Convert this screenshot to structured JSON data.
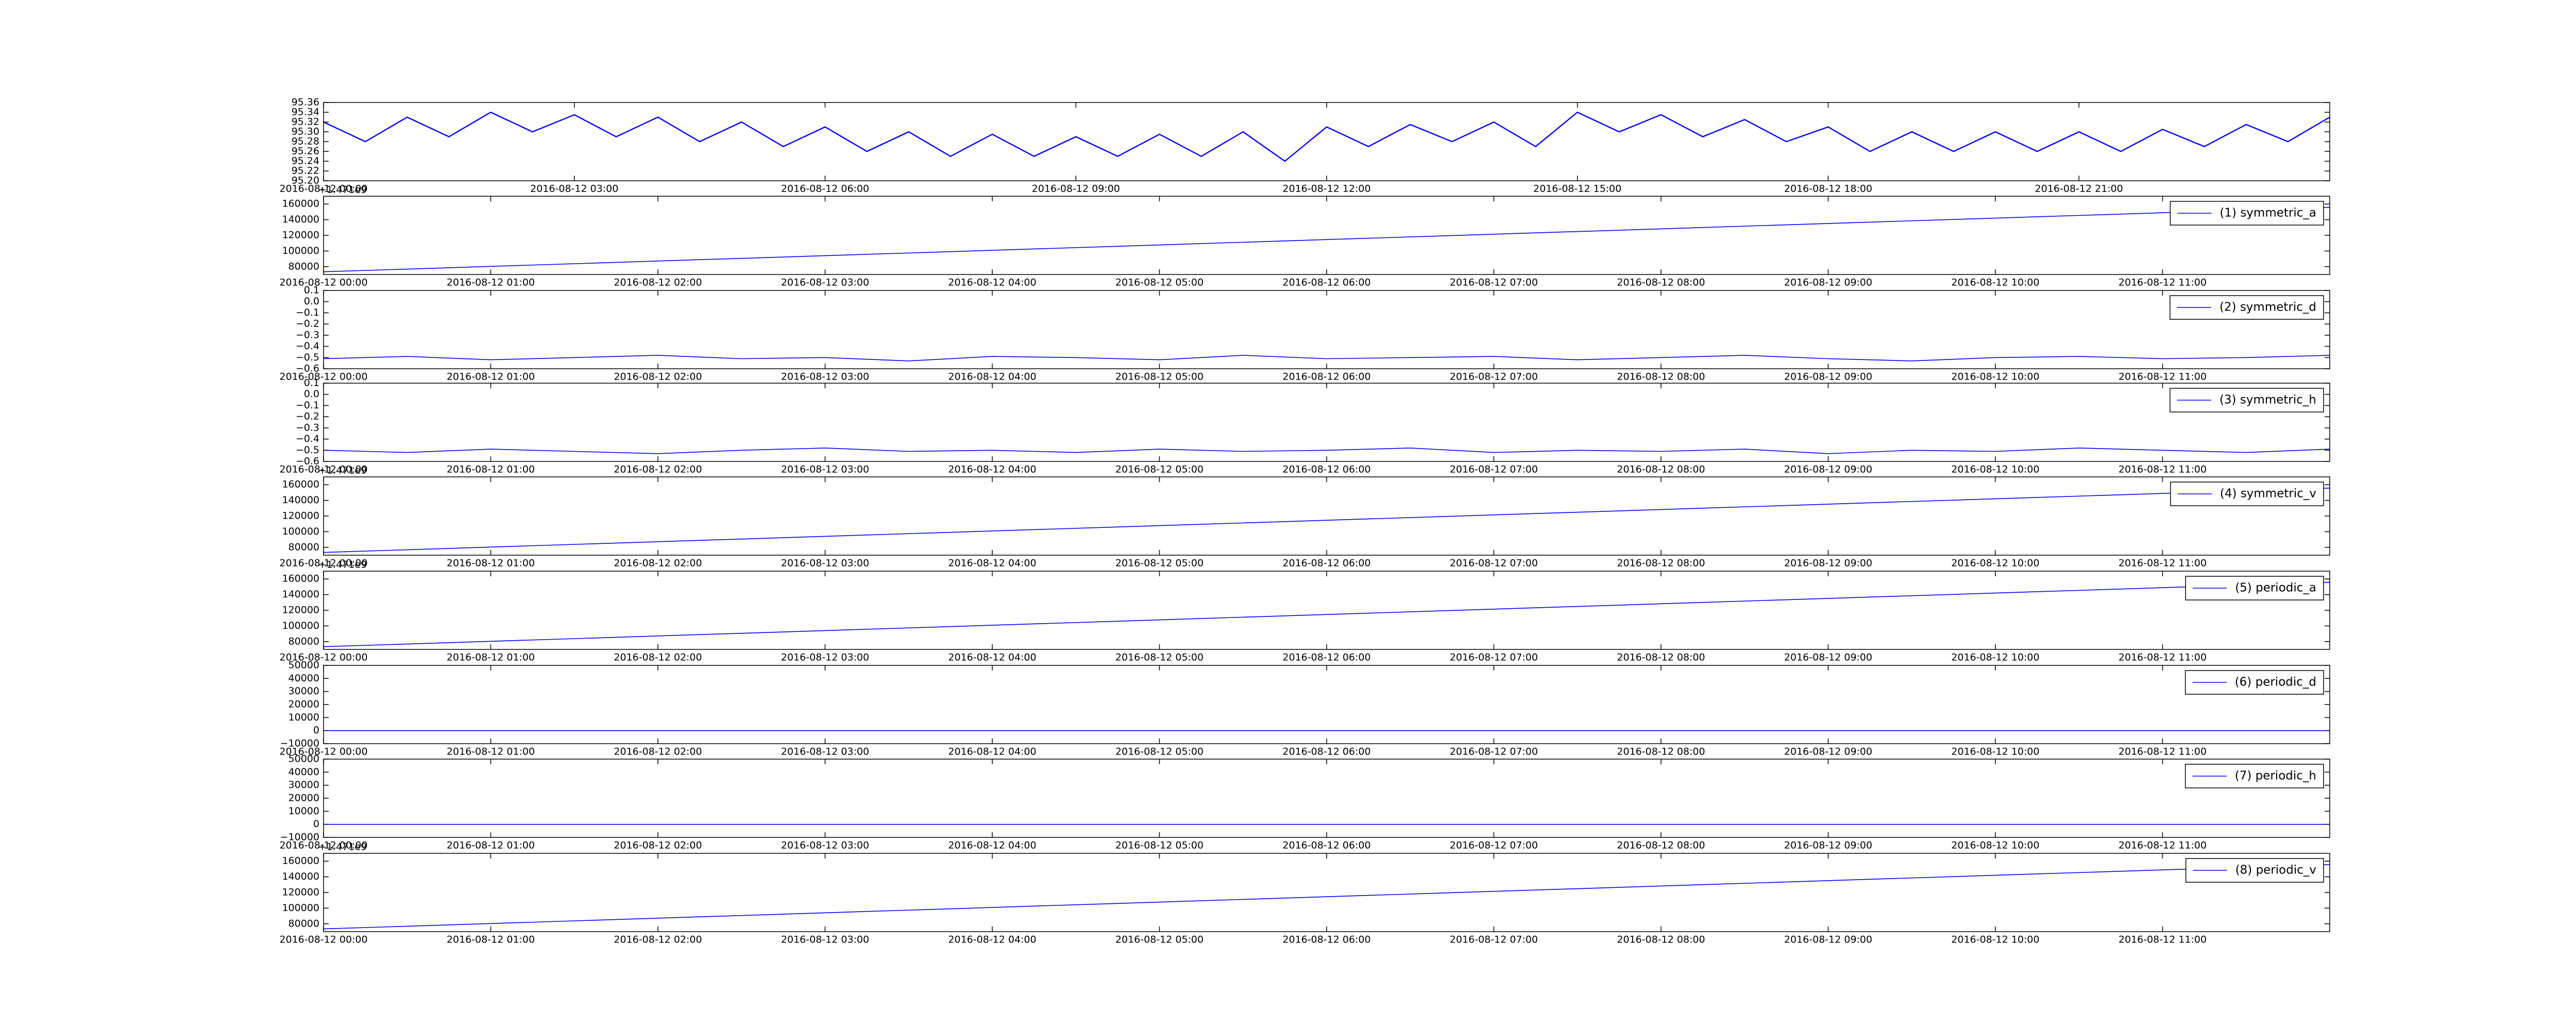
{
  "chart_data": [
    {
      "type": "line",
      "color": "#0000ff",
      "x": [
        "2016-08-12 00:00",
        "2016-08-12 00:30",
        "2016-08-12 01:00",
        "2016-08-12 01:30",
        "2016-08-12 02:00",
        "2016-08-12 02:30",
        "2016-08-12 03:00",
        "2016-08-12 03:30",
        "2016-08-12 04:00",
        "2016-08-12 04:30",
        "2016-08-12 05:00",
        "2016-08-12 05:30",
        "2016-08-12 06:00",
        "2016-08-12 06:30",
        "2016-08-12 07:00",
        "2016-08-12 07:30",
        "2016-08-12 08:00",
        "2016-08-12 08:30",
        "2016-08-12 09:00",
        "2016-08-12 09:30",
        "2016-08-12 10:00",
        "2016-08-12 10:30",
        "2016-08-12 11:00",
        "2016-08-12 11:30",
        "2016-08-12 12:00",
        "2016-08-12 12:30",
        "2016-08-12 13:00",
        "2016-08-12 13:30",
        "2016-08-12 14:00",
        "2016-08-12 14:30",
        "2016-08-12 15:00",
        "2016-08-12 15:30",
        "2016-08-12 16:00",
        "2016-08-12 16:30",
        "2016-08-12 17:00",
        "2016-08-12 17:30",
        "2016-08-12 18:00",
        "2016-08-12 18:30",
        "2016-08-12 19:00",
        "2016-08-12 19:30",
        "2016-08-12 20:00",
        "2016-08-12 20:30",
        "2016-08-12 21:00",
        "2016-08-12 21:30",
        "2016-08-12 22:00",
        "2016-08-12 22:30",
        "2016-08-12 23:00",
        "2016-08-12 23:30",
        "2016-08-13 00:00"
      ],
      "values": [
        95.32,
        95.28,
        95.33,
        95.29,
        95.34,
        95.3,
        95.335,
        95.29,
        95.33,
        95.28,
        95.32,
        95.27,
        95.31,
        95.26,
        95.3,
        95.25,
        95.295,
        95.25,
        95.29,
        95.25,
        95.295,
        95.25,
        95.3,
        95.24,
        95.31,
        95.27,
        95.315,
        95.28,
        95.32,
        95.27,
        95.34,
        95.3,
        95.335,
        95.29,
        95.325,
        95.28,
        95.31,
        95.26,
        95.3,
        95.26,
        95.3,
        95.26,
        95.3,
        95.26,
        95.305,
        95.27,
        95.315,
        95.28,
        95.33
      ],
      "xlim": [
        "2016-08-12 00:00",
        "2016-08-13 00:00"
      ],
      "xticks": [
        "2016-08-12 00:00",
        "2016-08-12 03:00",
        "2016-08-12 06:00",
        "2016-08-12 09:00",
        "2016-08-12 12:00",
        "2016-08-12 15:00",
        "2016-08-12 18:00",
        "2016-08-12 21:00"
      ],
      "ylim": [
        95.2,
        95.36
      ],
      "yticks": [
        {
          "value": 95.2,
          "label": "95.20"
        },
        95.22,
        95.24,
        95.26,
        95.28,
        {
          "value": 95.3,
          "label": "95.30"
        },
        95.32,
        95.34,
        95.36
      ]
    },
    {
      "type": "line",
      "legend": "upper right",
      "offset_text": "+1.471e9",
      "series": [
        {
          "name": "(1) symmetric_a",
          "color": "#0000ff",
          "values": [
            73500,
            155700
          ]
        }
      ],
      "x": [
        "2016-08-12 00:00",
        "2016-08-12 12:00"
      ],
      "xlim": [
        "2016-08-12 00:00",
        "2016-08-12 12:00"
      ],
      "xticks": [
        "2016-08-12 00:00",
        "2016-08-12 01:00",
        "2016-08-12 02:00",
        "2016-08-12 03:00",
        "2016-08-12 04:00",
        "2016-08-12 05:00",
        "2016-08-12 06:00",
        "2016-08-12 07:00",
        "2016-08-12 08:00",
        "2016-08-12 09:00",
        "2016-08-12 10:00",
        "2016-08-12 11:00"
      ],
      "ylim": [
        70000,
        170000
      ],
      "yticks": [
        80000,
        100000,
        120000,
        140000,
        160000
      ]
    },
    {
      "type": "line",
      "legend": "upper right",
      "series": [
        {
          "name": "(2) symmetric_d",
          "color": "#0000ff",
          "values": [
            -0.51,
            -0.49,
            -0.52,
            -0.5,
            -0.48,
            -0.51,
            -0.5,
            -0.53,
            -0.49,
            -0.5,
            -0.52,
            -0.48,
            -0.51,
            -0.5,
            -0.49,
            -0.52,
            -0.5,
            -0.48,
            -0.51,
            -0.53,
            -0.5,
            -0.49,
            -0.51,
            -0.5,
            -0.48
          ]
        }
      ],
      "x": [
        "2016-08-12 00:00",
        "2016-08-12 00:30",
        "2016-08-12 01:00",
        "2016-08-12 01:30",
        "2016-08-12 02:00",
        "2016-08-12 02:30",
        "2016-08-12 03:00",
        "2016-08-12 03:30",
        "2016-08-12 04:00",
        "2016-08-12 04:30",
        "2016-08-12 05:00",
        "2016-08-12 05:30",
        "2016-08-12 06:00",
        "2016-08-12 06:30",
        "2016-08-12 07:00",
        "2016-08-12 07:30",
        "2016-08-12 08:00",
        "2016-08-12 08:30",
        "2016-08-12 09:00",
        "2016-08-12 09:30",
        "2016-08-12 10:00",
        "2016-08-12 10:30",
        "2016-08-12 11:00",
        "2016-08-12 11:30",
        "2016-08-12 12:00"
      ],
      "xlim": [
        "2016-08-12 00:00",
        "2016-08-12 12:00"
      ],
      "xticks": [
        "2016-08-12 00:00",
        "2016-08-12 01:00",
        "2016-08-12 02:00",
        "2016-08-12 03:00",
        "2016-08-12 04:00",
        "2016-08-12 05:00",
        "2016-08-12 06:00",
        "2016-08-12 07:00",
        "2016-08-12 08:00",
        "2016-08-12 09:00",
        "2016-08-12 10:00",
        "2016-08-12 11:00"
      ],
      "ylim": [
        -0.6,
        0.1
      ],
      "yticks": [
        {
          "value": -0.6,
          "label": "−0.6"
        },
        {
          "value": -0.5,
          "label": "−0.5"
        },
        {
          "value": -0.4,
          "label": "−0.4"
        },
        {
          "value": -0.3,
          "label": "−0.3"
        },
        {
          "value": -0.2,
          "label": "−0.2"
        },
        {
          "value": -0.1,
          "label": "−0.1"
        },
        {
          "value": 0,
          "label": "0.0"
        },
        0.1
      ]
    },
    {
      "type": "line",
      "legend": "upper right",
      "series": [
        {
          "name": "(3) symmetric_h",
          "color": "#0000ff",
          "values": [
            -0.5,
            -0.52,
            -0.49,
            -0.51,
            -0.53,
            -0.5,
            -0.48,
            -0.51,
            -0.5,
            -0.52,
            -0.49,
            -0.51,
            -0.5,
            -0.48,
            -0.52,
            -0.5,
            -0.51,
            -0.49,
            -0.53,
            -0.5,
            -0.51,
            -0.48,
            -0.5,
            -0.52,
            -0.49
          ]
        }
      ],
      "x": [
        "2016-08-12 00:00",
        "2016-08-12 00:30",
        "2016-08-12 01:00",
        "2016-08-12 01:30",
        "2016-08-12 02:00",
        "2016-08-12 02:30",
        "2016-08-12 03:00",
        "2016-08-12 03:30",
        "2016-08-12 04:00",
        "2016-08-12 04:30",
        "2016-08-12 05:00",
        "2016-08-12 05:30",
        "2016-08-12 06:00",
        "2016-08-12 06:30",
        "2016-08-12 07:00",
        "2016-08-12 07:30",
        "2016-08-12 08:00",
        "2016-08-12 08:30",
        "2016-08-12 09:00",
        "2016-08-12 09:30",
        "2016-08-12 10:00",
        "2016-08-12 10:30",
        "2016-08-12 11:00",
        "2016-08-12 11:30",
        "2016-08-12 12:00"
      ],
      "xlim": [
        "2016-08-12 00:00",
        "2016-08-12 12:00"
      ],
      "xticks": [
        "2016-08-12 00:00",
        "2016-08-12 01:00",
        "2016-08-12 02:00",
        "2016-08-12 03:00",
        "2016-08-12 04:00",
        "2016-08-12 05:00",
        "2016-08-12 06:00",
        "2016-08-12 07:00",
        "2016-08-12 08:00",
        "2016-08-12 09:00",
        "2016-08-12 10:00",
        "2016-08-12 11:00"
      ],
      "ylim": [
        -0.6,
        0.1
      ],
      "yticks": [
        {
          "value": -0.6,
          "label": "−0.6"
        },
        {
          "value": -0.5,
          "label": "−0.5"
        },
        {
          "value": -0.4,
          "label": "−0.4"
        },
        {
          "value": -0.3,
          "label": "−0.3"
        },
        {
          "value": -0.2,
          "label": "−0.2"
        },
        {
          "value": -0.1,
          "label": "−0.1"
        },
        {
          "value": 0,
          "label": "0.0"
        },
        0.1
      ]
    },
    {
      "type": "line",
      "legend": "upper right",
      "offset_text": "+1.471e9",
      "series": [
        {
          "name": "(4) symmetric_v",
          "color": "#0000ff",
          "values": [
            73500,
            155700
          ]
        }
      ],
      "x": [
        "2016-08-12 00:00",
        "2016-08-12 12:00"
      ],
      "xlim": [
        "2016-08-12 00:00",
        "2016-08-12 12:00"
      ],
      "xticks": [
        "2016-08-12 00:00",
        "2016-08-12 01:00",
        "2016-08-12 02:00",
        "2016-08-12 03:00",
        "2016-08-12 04:00",
        "2016-08-12 05:00",
        "2016-08-12 06:00",
        "2016-08-12 07:00",
        "2016-08-12 08:00",
        "2016-08-12 09:00",
        "2016-08-12 10:00",
        "2016-08-12 11:00"
      ],
      "ylim": [
        70000,
        170000
      ],
      "yticks": [
        80000,
        100000,
        120000,
        140000,
        160000
      ]
    },
    {
      "type": "line",
      "legend": "upper right",
      "offset_text": "+1.471e9",
      "series": [
        {
          "name": "(5) periodic_a",
          "color": "#0000ff",
          "values": [
            73500,
            155700
          ]
        }
      ],
      "x": [
        "2016-08-12 00:00",
        "2016-08-12 12:00"
      ],
      "xlim": [
        "2016-08-12 00:00",
        "2016-08-12 12:00"
      ],
      "xticks": [
        "2016-08-12 00:00",
        "2016-08-12 01:00",
        "2016-08-12 02:00",
        "2016-08-12 03:00",
        "2016-08-12 04:00",
        "2016-08-12 05:00",
        "2016-08-12 06:00",
        "2016-08-12 07:00",
        "2016-08-12 08:00",
        "2016-08-12 09:00",
        "2016-08-12 10:00",
        "2016-08-12 11:00"
      ],
      "ylim": [
        70000,
        170000
      ],
      "yticks": [
        80000,
        100000,
        120000,
        140000,
        160000
      ]
    },
    {
      "type": "line",
      "legend": "upper right",
      "series": [
        {
          "name": "(6) periodic_d",
          "color": "#0000ff",
          "values": [
            0,
            0
          ]
        }
      ],
      "x": [
        "2016-08-12 00:00",
        "2016-08-12 12:00"
      ],
      "xlim": [
        "2016-08-12 00:00",
        "2016-08-12 12:00"
      ],
      "xticks": [
        "2016-08-12 00:00",
        "2016-08-12 01:00",
        "2016-08-12 02:00",
        "2016-08-12 03:00",
        "2016-08-12 04:00",
        "2016-08-12 05:00",
        "2016-08-12 06:00",
        "2016-08-12 07:00",
        "2016-08-12 08:00",
        "2016-08-12 09:00",
        "2016-08-12 10:00",
        "2016-08-12 11:00"
      ],
      "ylim": [
        -10000,
        50000
      ],
      "yticks": [
        {
          "value": -10000,
          "label": "−10000"
        },
        0,
        10000,
        20000,
        30000,
        40000,
        50000
      ]
    },
    {
      "type": "line",
      "legend": "upper right",
      "series": [
        {
          "name": "(7) periodic_h",
          "color": "#0000ff",
          "values": [
            0,
            0
          ]
        }
      ],
      "x": [
        "2016-08-12 00:00",
        "2016-08-12 12:00"
      ],
      "xlim": [
        "2016-08-12 00:00",
        "2016-08-12 12:00"
      ],
      "xticks": [
        "2016-08-12 00:00",
        "2016-08-12 01:00",
        "2016-08-12 02:00",
        "2016-08-12 03:00",
        "2016-08-12 04:00",
        "2016-08-12 05:00",
        "2016-08-12 06:00",
        "2016-08-12 07:00",
        "2016-08-12 08:00",
        "2016-08-12 09:00",
        "2016-08-12 10:00",
        "2016-08-12 11:00"
      ],
      "ylim": [
        -10000,
        50000
      ],
      "yticks": [
        {
          "value": -10000,
          "label": "−10000"
        },
        0,
        10000,
        20000,
        30000,
        40000,
        50000
      ]
    },
    {
      "type": "line",
      "legend": "upper right",
      "offset_text": "+1.471e9",
      "series": [
        {
          "name": "(8) periodic_v",
          "color": "#0000ff",
          "values": [
            73500,
            155700
          ]
        }
      ],
      "x": [
        "2016-08-12 00:00",
        "2016-08-12 12:00"
      ],
      "xlim": [
        "2016-08-12 00:00",
        "2016-08-12 12:00"
      ],
      "xticks": [
        "2016-08-12 00:00",
        "2016-08-12 01:00",
        "2016-08-12 02:00",
        "2016-08-12 03:00",
        "2016-08-12 04:00",
        "2016-08-12 05:00",
        "2016-08-12 06:00",
        "2016-08-12 07:00",
        "2016-08-12 08:00",
        "2016-08-12 09:00",
        "2016-08-12 10:00",
        "2016-08-12 11:00"
      ],
      "ylim": [
        70000,
        170000
      ],
      "yticks": [
        80000,
        100000,
        120000,
        140000,
        160000
      ]
    }
  ]
}
